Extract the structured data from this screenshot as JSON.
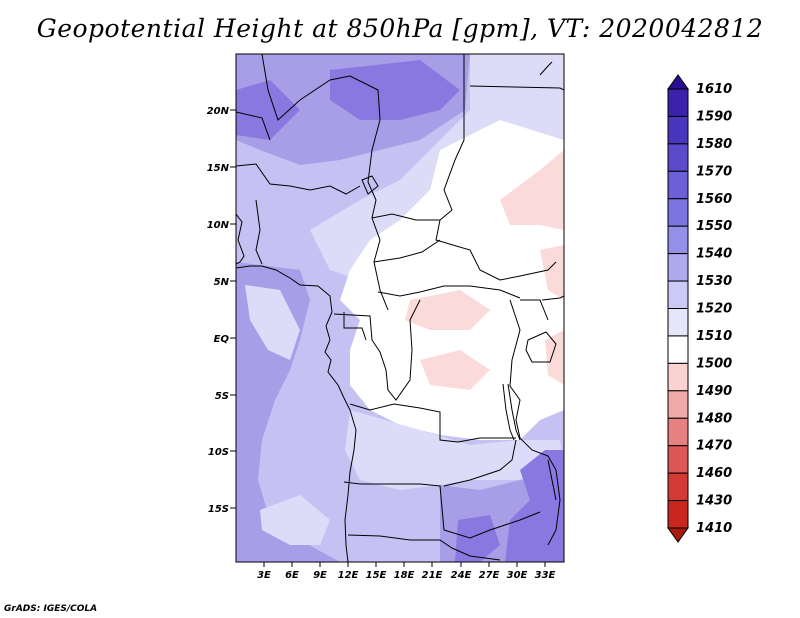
{
  "title": "Geopotential Height at 850hPa [gpm], VT: 2020042812",
  "credit": "GrADS: IGES/COLA",
  "map": {
    "variable": "Geopotential Height",
    "level": "850hPa",
    "units": "gpm",
    "valid_time": "2020042812",
    "lat_labels": [
      "20N",
      "15N",
      "10N",
      "5N",
      "EQ",
      "5S",
      "10S",
      "15S"
    ],
    "lon_labels": [
      "3E",
      "6E",
      "9E",
      "12E",
      "15E",
      "18E",
      "21E",
      "24E",
      "27E",
      "30E",
      "33E"
    ]
  },
  "colorbar": {
    "levels": [
      "1610",
      "1590",
      "1580",
      "1570",
      "1560",
      "1550",
      "1540",
      "1530",
      "1520",
      "1510",
      "1500",
      "1490",
      "1480",
      "1470",
      "1460",
      "1430",
      "1410"
    ],
    "colors": [
      "#2a0f96",
      "#3a22ac",
      "#4a36bc",
      "#5b4bcb",
      "#6c60d8",
      "#7d76e0",
      "#9490e8",
      "#aeaaef",
      "#cbc9f5",
      "#e6e6fa",
      "#ffffff",
      "#fad2d2",
      "#f1aaaa",
      "#e78080",
      "#dc5757",
      "#d33a35",
      "#c8261f",
      "#a8190e"
    ]
  },
  "shading_colors": {
    "deep": "#8878e0",
    "mid": "#a89ee8",
    "light": "#c5c2f3",
    "pale": "#dddcf8",
    "white": "#ffffff",
    "pink": "#fbdada"
  }
}
